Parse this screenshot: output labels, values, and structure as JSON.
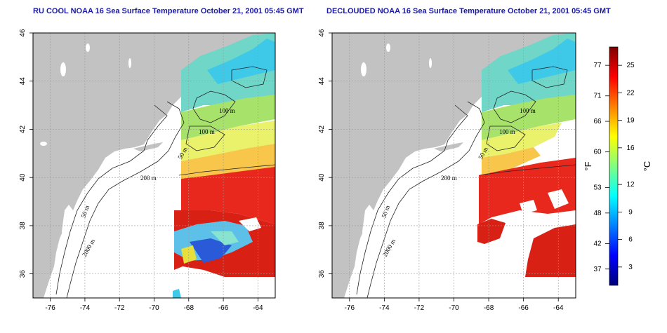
{
  "maps": [
    {
      "title": "RU COOL NOAA 16 Sea Surface Temperature October 21, 2001 05:45 GMT",
      "mode": "full"
    },
    {
      "title": "DECLOUDED NOAA 16 Sea Surface Temperature October 21, 2001 05:45 GMT",
      "mode": "declouded"
    }
  ],
  "axes": {
    "lat_ticks": [
      "46",
      "44",
      "42",
      "40",
      "38",
      "36"
    ],
    "lon_ticks": [
      "-76",
      "-74",
      "-72",
      "-70",
      "-68",
      "-66",
      "-64"
    ],
    "lat_range": [
      35,
      46
    ],
    "lon_range": [
      -77,
      -63
    ]
  },
  "isobath_labels": [
    "100 m",
    "100 m",
    "50 m",
    "200 m",
    "50 m",
    "2000 m"
  ],
  "colorbar": {
    "fahrenheit_ticks": [
      "77",
      "71",
      "66",
      "60",
      "53",
      "48",
      "42",
      "37"
    ],
    "celsius_ticks": [
      "25",
      "22",
      "19",
      "16",
      "12",
      "9",
      "6",
      "3"
    ],
    "fahrenheit_label": "°F",
    "celsius_label": "°C",
    "colors": [
      "#00007a",
      "#0000ff",
      "#0080ff",
      "#00ffff",
      "#80ff80",
      "#ffff00",
      "#ff8000",
      "#ff0000",
      "#800000"
    ]
  }
}
